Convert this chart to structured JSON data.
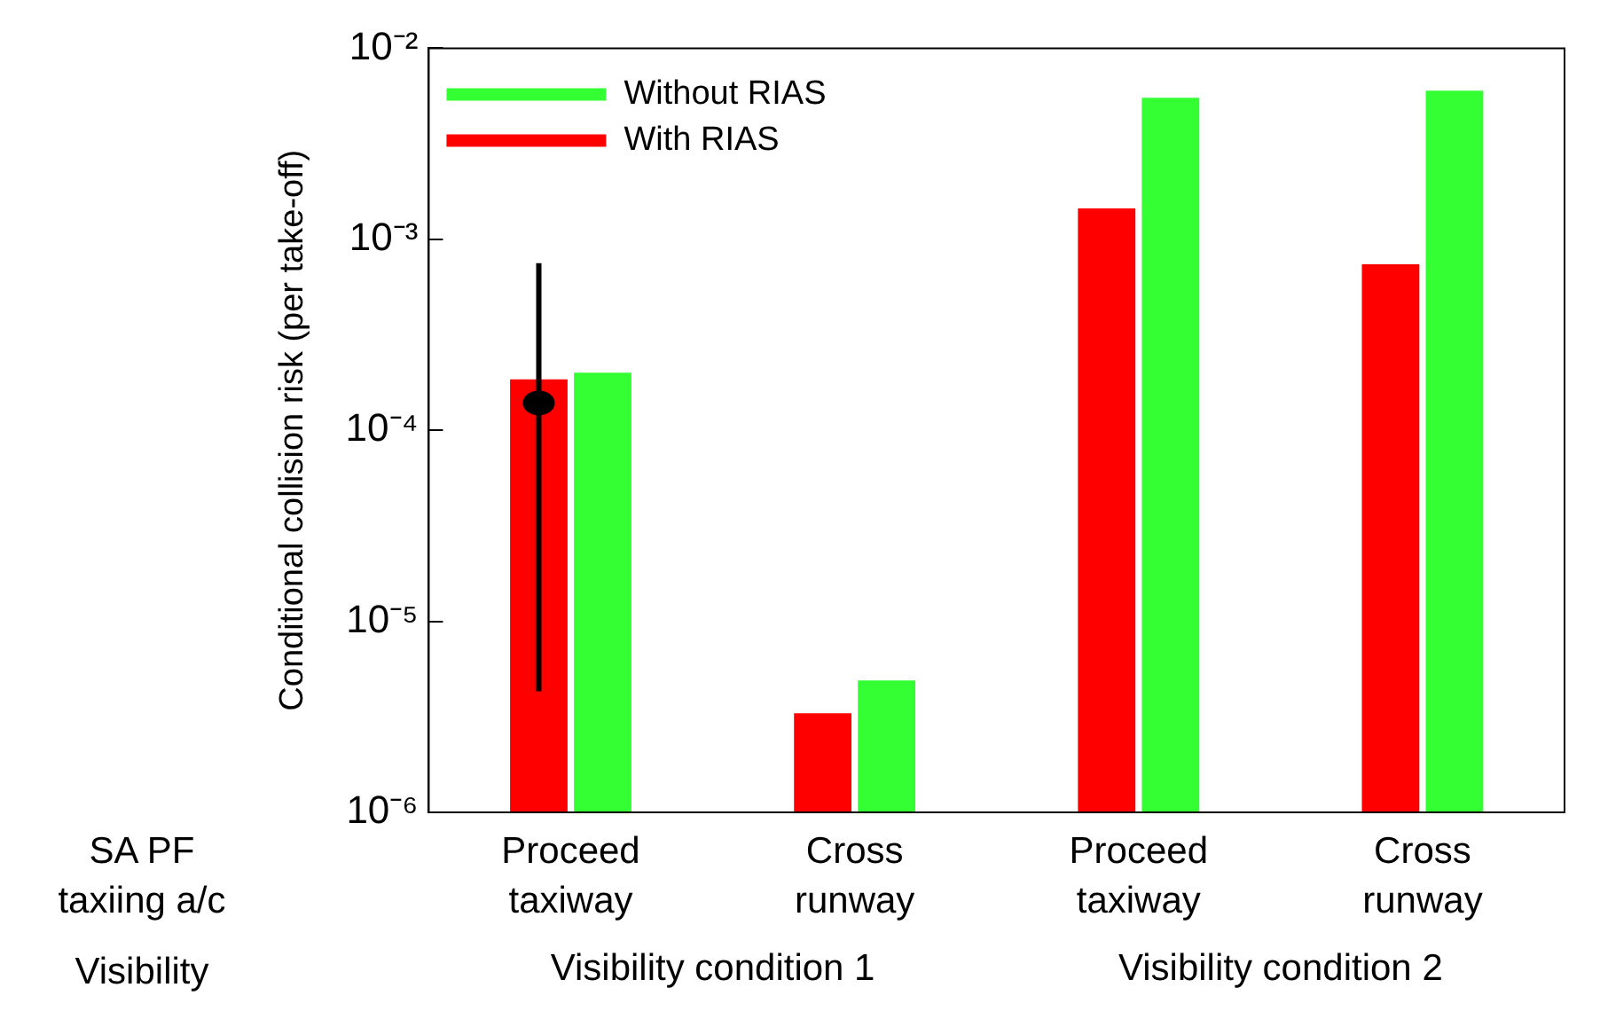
{
  "chart_data": {
    "type": "bar",
    "ylabel": "Conditional collision risk (per take-off)",
    "categories": [
      "Proceed\ntaxiway",
      "Cross\nrunway",
      "Proceed\ntaxiway",
      "Cross\nrunway"
    ],
    "series": [
      {
        "name": "With RIAS",
        "color": "#ff0000",
        "values": [
          0.000185,
          3.3e-06,
          0.00145,
          0.00074
        ]
      },
      {
        "name": "Without RIAS",
        "color": "#33ff33",
        "values": [
          0.0002,
          4.9e-06,
          0.0055,
          0.006
        ]
      },
      {
        "type": "scatter",
        "color": "#000000",
        "x": [
          "Proceed\ntaxiway"
        ],
        "values": [
          0.000139
        ],
        "errors": [
          [
            4.3e-06,
            0.00075
          ]
        ],
        "marker": "circle"
      }
    ],
    "log": "y",
    "ylim": [
      1e-06,
      0.01
    ],
    "yticks": [
      {
        "value": 1e-06,
        "label": "10⁻⁶"
      },
      {
        "value": 1e-05,
        "label": "10⁻⁵"
      },
      {
        "value": 0.0001,
        "label": "10⁻⁴"
      },
      {
        "value": 0.001,
        "label": "10⁻³"
      },
      {
        "value": 0.01,
        "label": "10⁻²"
      }
    ],
    "grid": false,
    "legend": "top left",
    "annotations": [
      "SA PF\ntaxiing a/c",
      "Visibility",
      "Visibility condition 1",
      "Visibility condition 2"
    ]
  }
}
